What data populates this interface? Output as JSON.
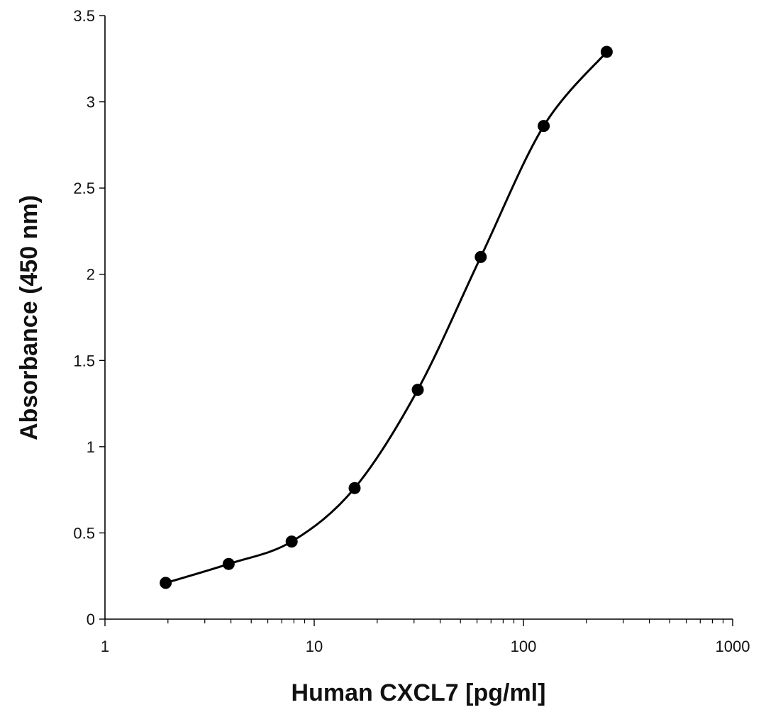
{
  "chart_data": {
    "type": "line",
    "title": "",
    "xlabel": "Human CXCL7 [pg/ml]",
    "ylabel": "Absorbance (450 nm)",
    "x_scale": "log",
    "xlim": [
      1,
      1000
    ],
    "ylim": [
      0,
      3.5
    ],
    "x_ticks": [
      1,
      10,
      100,
      1000
    ],
    "x_tick_labels": [
      "1",
      "10",
      "100",
      "1000"
    ],
    "y_ticks": [
      0,
      0.5,
      1,
      1.5,
      2,
      2.5,
      3,
      3.5
    ],
    "y_tick_labels": [
      "0",
      "0.5",
      "1",
      "1.5",
      "2",
      "2.5",
      "3",
      "3.5"
    ],
    "grid": false,
    "legend": "none",
    "line_style": "smoothed",
    "marker": "filled-circle",
    "series": [
      {
        "x": [
          1.95,
          3.9,
          7.8,
          15.6,
          31.25,
          62.5,
          125,
          250
        ],
        "y": [
          0.21,
          0.32,
          0.45,
          0.76,
          1.33,
          2.1,
          2.86,
          3.29
        ]
      }
    ],
    "colors": {
      "line": "#000000",
      "marker": "#000000",
      "axis": "#000000"
    }
  }
}
